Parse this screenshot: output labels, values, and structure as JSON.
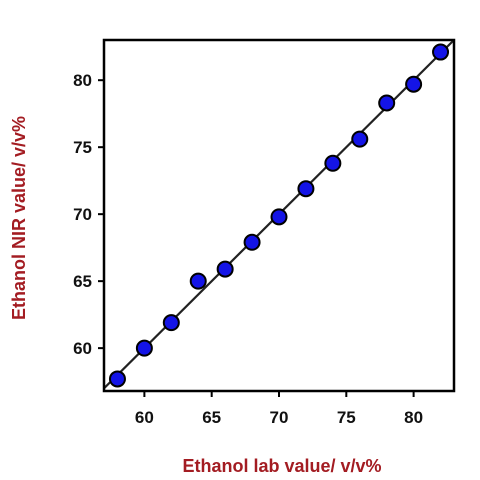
{
  "chart_data": {
    "type": "scatter",
    "xlabel": "Ethanol lab value/ v/v%",
    "ylabel": "Ethanol NIR value/ v/v%",
    "xlim": [
      57,
      83
    ],
    "ylim": [
      56.8,
      83.0
    ],
    "xticks": [
      60,
      65,
      70,
      75,
      80
    ],
    "yticks": [
      60,
      65,
      70,
      75,
      80
    ],
    "x": [
      58,
      60,
      62,
      64,
      66,
      68,
      70,
      72,
      74,
      76,
      78,
      80,
      82
    ],
    "y": [
      57.7,
      60.0,
      61.9,
      65.0,
      65.9,
      67.9,
      69.8,
      71.9,
      73.8,
      75.6,
      78.3,
      79.7,
      82.1
    ],
    "fit_line": {
      "x": [
        57,
        83
      ],
      "y": [
        57,
        83
      ]
    },
    "grid": false,
    "colors": {
      "marker_fill": "#1414e6",
      "marker_stroke": "#000000",
      "axis_title": "#a31c22",
      "fit_line": "#222222",
      "frame": "#000000"
    }
  }
}
